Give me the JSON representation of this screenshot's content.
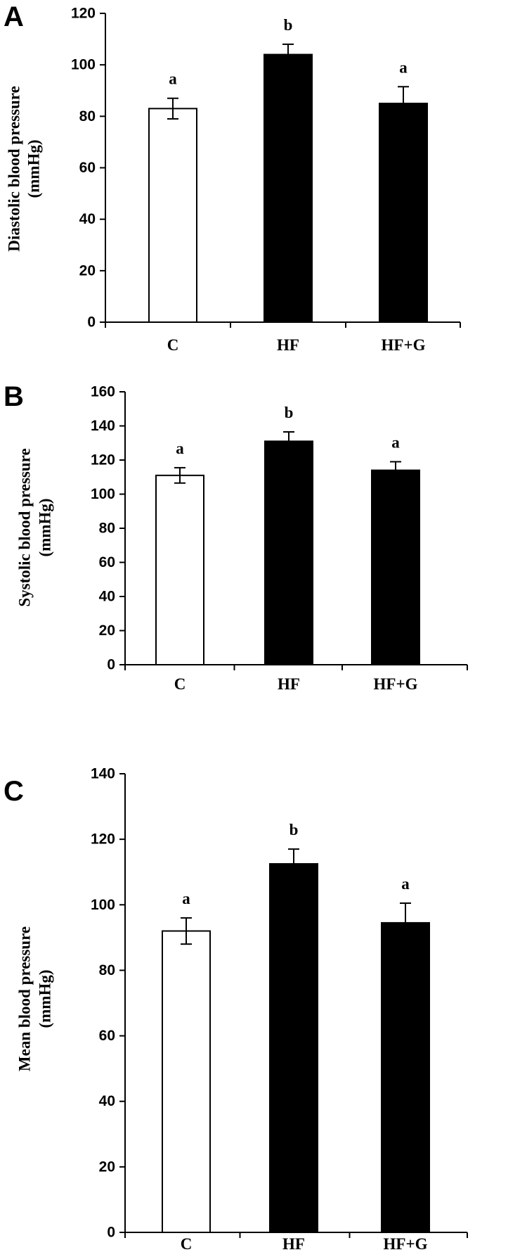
{
  "chart_data": [
    {
      "panel": "A",
      "type": "bar",
      "categories": [
        "C",
        "HF",
        "HF+G"
      ],
      "values": [
        83,
        104,
        85
      ],
      "errors": [
        4,
        4,
        6.5
      ],
      "significance": [
        "a",
        "b",
        "a"
      ],
      "bar_colors": [
        "#ffffff",
        "#000000",
        "#000000"
      ],
      "ylabel_line1": "Diastolic blood pressure",
      "ylabel_line2": "(mmHg)",
      "ylim": [
        0,
        120
      ],
      "yticks": [
        0,
        20,
        40,
        60,
        80,
        100,
        120
      ],
      "grid": false
    },
    {
      "panel": "B",
      "type": "bar",
      "categories": [
        "C",
        "HF",
        "HF+G"
      ],
      "values": [
        111,
        131,
        114
      ],
      "errors": [
        4.5,
        5.5,
        5
      ],
      "significance": [
        "a",
        "b",
        "a"
      ],
      "bar_colors": [
        "#ffffff",
        "#000000",
        "#000000"
      ],
      "ylabel_line1": "Systolic blood pressure",
      "ylabel_line2": "(mmHg)",
      "ylim": [
        0,
        160
      ],
      "yticks": [
        0,
        20,
        40,
        60,
        80,
        100,
        120,
        140,
        160
      ],
      "grid": false
    },
    {
      "panel": "C",
      "type": "bar",
      "categories": [
        "C",
        "HF",
        "HF+G"
      ],
      "values": [
        92,
        112.5,
        94.5
      ],
      "errors": [
        4,
        4.5,
        6
      ],
      "significance": [
        "a",
        "b",
        "a"
      ],
      "bar_colors": [
        "#ffffff",
        "#000000",
        "#000000"
      ],
      "ylabel_line1": "Mean blood pressure",
      "ylabel_line2": "(mmHg)",
      "ylim": [
        0,
        140
      ],
      "yticks": [
        0,
        20,
        40,
        60,
        80,
        100,
        120,
        140
      ],
      "grid": false
    }
  ]
}
